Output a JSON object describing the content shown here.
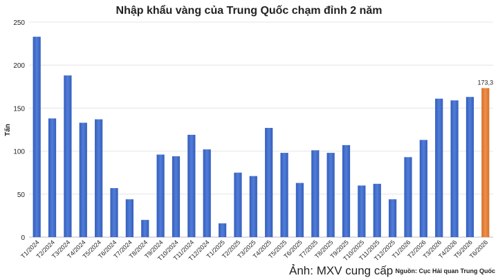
{
  "chart_data": {
    "type": "bar",
    "title": "Nhập khẩu vàng của Trung Quốc chạm đỉnh 2 năm",
    "y_label": "Tấn",
    "source": "Nguồn: Cục Hải quan Trung Quốc",
    "credit": "Ảnh: MXV cung cấp",
    "categories": [
      "T1/2024",
      "T2/2024",
      "T3/2024",
      "T4/2024",
      "T5/2024",
      "T6/2024",
      "T7/2024",
      "T8/2024",
      "T9/2024",
      "T10/2024",
      "T11/2024",
      "T12/2024",
      "T1/2025",
      "T2/2025",
      "T3/2025",
      "T4/2025",
      "T5/2025",
      "T6/2025",
      "T7/2025",
      "T8/2025",
      "T9/2025",
      "T10/2025",
      "T11/2025",
      "T12/2025",
      "T1/2026",
      "T2/2026",
      "T3/2026",
      "T4/2026",
      "T5/2026",
      "T6/2026"
    ],
    "values": [
      233,
      138,
      188,
      133,
      137,
      57,
      44,
      20,
      96,
      94,
      119,
      102,
      16,
      75,
      71,
      127,
      98,
      63,
      101,
      98,
      107,
      60,
      62,
      44,
      93,
      113,
      161,
      159,
      163,
      173.3
    ],
    "value_labels": [
      null,
      null,
      null,
      null,
      null,
      null,
      null,
      null,
      null,
      null,
      null,
      null,
      null,
      null,
      null,
      null,
      null,
      null,
      null,
      null,
      null,
      null,
      null,
      null,
      null,
      null,
      null,
      null,
      null,
      "173,3"
    ],
    "colors": [
      "#3a6bd4",
      "#3a6bd4",
      "#3a6bd4",
      "#3a6bd4",
      "#3a6bd4",
      "#3a6bd4",
      "#3a6bd4",
      "#3a6bd4",
      "#3a6bd4",
      "#3a6bd4",
      "#3a6bd4",
      "#3a6bd4",
      "#3a6bd4",
      "#3a6bd4",
      "#3a6bd4",
      "#3a6bd4",
      "#3a6bd4",
      "#3a6bd4",
      "#3a6bd4",
      "#3a6bd4",
      "#3a6bd4",
      "#3a6bd4",
      "#3a6bd4",
      "#3a6bd4",
      "#3a6bd4",
      "#3a6bd4",
      "#3a6bd4",
      "#3a6bd4",
      "#3a6bd4",
      "#f07f2e"
    ],
    "ylim": [
      0,
      250
    ],
    "yticks": [
      0,
      50,
      100,
      150,
      200,
      250
    ],
    "grid": true
  }
}
